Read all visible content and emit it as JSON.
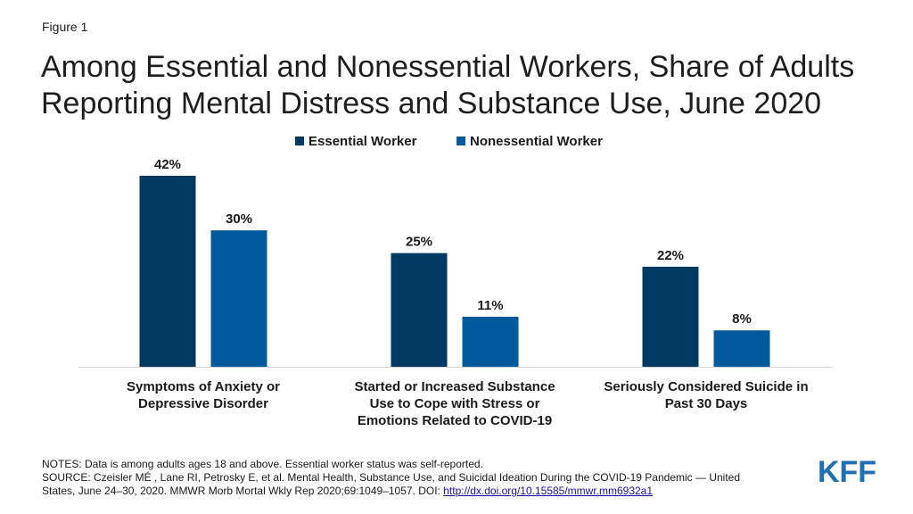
{
  "figure_label": "Figure 1",
  "title_lines": [
    "Among Essential and Nonessential Workers, Share of Adults",
    "Reporting Mental Distress and Substance Use, June 2020"
  ],
  "chart_data": {
    "type": "bar",
    "categories": [
      [
        "Symptoms of Anxiety or",
        "Depressive Disorder"
      ],
      [
        "Started or Increased Substance",
        "Use to Cope with Stress or",
        "Emotions Related to COVID-19"
      ],
      [
        "Seriously Considered Suicide in",
        "Past 30 Days"
      ]
    ],
    "series": [
      {
        "name": "Essential Worker",
        "color": "#003a63",
        "values": [
          42,
          25,
          22
        ],
        "labels": [
          "42%",
          "25%",
          "22%"
        ]
      },
      {
        "name": "Nonessential Worker",
        "color": "#005a9c",
        "values": [
          30,
          11,
          8
        ],
        "labels": [
          "30%",
          "11%",
          "8%"
        ]
      }
    ],
    "unit": "%",
    "ylim": [
      0,
      42
    ],
    "legend_position": "top-center",
    "grid": false
  },
  "notes": {
    "line1": "NOTES: Data is among adults ages 18 and above. Essential worker status was self-reported.",
    "line2": "SOURCE: Czeisler MÉ , Lane RI, Petrosky E, et al. Mental Health, Substance Use, and Suicidal Ideation During the COVID-19 Pandemic — United",
    "line3_text": "States, June 24–30, 2020. MMWR Morb Mortal Wkly Rep 2020;69:1049–1057. DOI: ",
    "link_text": "http://dx.doi.org/10.15585/mmwr.mm6932a1"
  },
  "logo": {
    "text": "KFF",
    "color": "#1f6fb5"
  }
}
